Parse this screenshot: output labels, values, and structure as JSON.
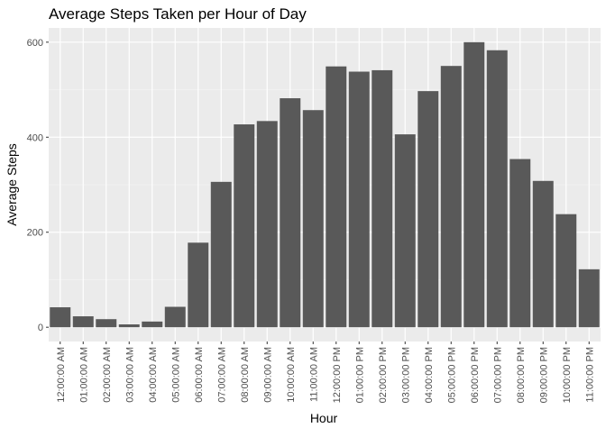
{
  "chart_data": {
    "type": "bar",
    "title": "Average Steps Taken per Hour of Day",
    "xlabel": "Hour",
    "ylabel": "Average Steps",
    "ylim": [
      -30,
      630
    ],
    "yticks": [
      0,
      200,
      400,
      600
    ],
    "grid": true,
    "categories": [
      "12:00:00 AM",
      "01:00:00 AM",
      "02:00:00 AM",
      "03:00:00 AM",
      "04:00:00 AM",
      "05:00:00 AM",
      "06:00:00 AM",
      "07:00:00 AM",
      "08:00:00 AM",
      "09:00:00 AM",
      "10:00:00 AM",
      "11:00:00 AM",
      "12:00:00 PM",
      "01:00:00 PM",
      "02:00:00 PM",
      "03:00:00 PM",
      "04:00:00 PM",
      "05:00:00 PM",
      "06:00:00 PM",
      "07:00:00 PM",
      "08:00:00 PM",
      "09:00:00 PM",
      "10:00:00 PM",
      "11:00:00 PM"
    ],
    "values": [
      42,
      23,
      17,
      6,
      12,
      43,
      178,
      306,
      427,
      434,
      482,
      457,
      549,
      538,
      541,
      406,
      497,
      550,
      600,
      583,
      354,
      308,
      238,
      122
    ],
    "colors": {
      "bar": "#595959",
      "panel": "#ebebeb",
      "grid_major": "#ffffff",
      "grid_minor": "#f5f5f5",
      "tick_text": "#4d4d4d",
      "axis_text": "#000000"
    }
  }
}
